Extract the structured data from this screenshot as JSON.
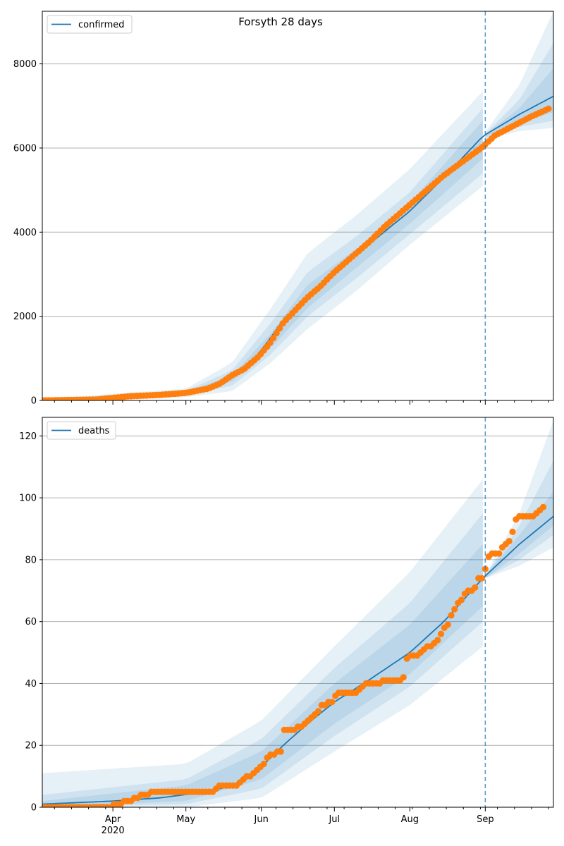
{
  "figure": {
    "title": "Forsyth 28 days"
  },
  "chart_data": [
    {
      "type": "line",
      "title": "Forsyth 28 days",
      "legend": {
        "label": "confirmed",
        "placement": "top-left"
      },
      "xaxis": {
        "start": "2020-03-03",
        "end": "2020-09-29",
        "ticks": [
          {
            "date": "2020-04-01",
            "label": "Apr"
          },
          {
            "date": "2020-05-01",
            "label": "May"
          },
          {
            "date": "2020-06-01",
            "label": "Jun"
          },
          {
            "date": "2020-07-01",
            "label": "Jul"
          },
          {
            "date": "2020-08-01",
            "label": "Aug"
          },
          {
            "date": "2020-09-01",
            "label": "Sep"
          }
        ],
        "tick_labels_shown": false
      },
      "ylim": [
        0,
        9250
      ],
      "yticks": [
        0,
        2000,
        4000,
        6000,
        8000
      ],
      "grid": "horizontal",
      "forecast_start": "2020-09-01",
      "series": [
        {
          "name": "confirmed",
          "kind": "model",
          "color": "#1f77b4",
          "points": [
            [
              "2020-03-03",
              0
            ],
            [
              "2020-04-01",
              70
            ],
            [
              "2020-04-15",
              120
            ],
            [
              "2020-05-01",
              180
            ],
            [
              "2020-05-10",
              300
            ],
            [
              "2020-05-20",
              550
            ],
            [
              "2020-05-28",
              900
            ],
            [
              "2020-06-03",
              1350
            ],
            [
              "2020-06-10",
              1900
            ],
            [
              "2020-06-20",
              2500
            ],
            [
              "2020-07-01",
              3000
            ],
            [
              "2020-07-15",
              3700
            ],
            [
              "2020-08-01",
              4500
            ],
            [
              "2020-08-15",
              5300
            ],
            [
              "2020-08-31",
              6280
            ],
            [
              "2020-09-15",
              6800
            ],
            [
              "2020-09-29",
              7230
            ]
          ]
        },
        {
          "name": "observed",
          "kind": "points",
          "color": "#ff7f0e",
          "points": [
            [
              "2020-03-03",
              0
            ],
            [
              "2020-03-25",
              20
            ],
            [
              "2020-04-01",
              60
            ],
            [
              "2020-04-08",
              100
            ],
            [
              "2020-04-20",
              130
            ],
            [
              "2020-05-01",
              180
            ],
            [
              "2020-05-10",
              280
            ],
            [
              "2020-05-15",
              400
            ],
            [
              "2020-05-20",
              600
            ],
            [
              "2020-05-25",
              750
            ],
            [
              "2020-05-31",
              1050
            ],
            [
              "2020-06-05",
              1400
            ],
            [
              "2020-06-10",
              1850
            ],
            [
              "2020-06-15",
              2150
            ],
            [
              "2020-06-20",
              2450
            ],
            [
              "2020-06-25",
              2700
            ],
            [
              "2020-07-01",
              3050
            ],
            [
              "2020-07-08",
              3400
            ],
            [
              "2020-07-15",
              3750
            ],
            [
              "2020-07-22",
              4150
            ],
            [
              "2020-08-01",
              4650
            ],
            [
              "2020-08-08",
              5000
            ],
            [
              "2020-08-15",
              5350
            ],
            [
              "2020-08-22",
              5650
            ],
            [
              "2020-08-31",
              6030
            ],
            [
              "2020-09-05",
              6300
            ],
            [
              "2020-09-10",
              6450
            ],
            [
              "2020-09-15",
              6600
            ],
            [
              "2020-09-20",
              6750
            ],
            [
              "2020-09-25",
              6880
            ],
            [
              "2020-09-28",
              6960
            ]
          ]
        }
      ],
      "bands": [
        {
          "dates": [
            "2020-03-03",
            "2020-05-01",
            "2020-05-20",
            "2020-06-05",
            "2020-06-20",
            "2020-07-10",
            "2020-08-01",
            "2020-08-31",
            "2020-09-01",
            "2020-09-15",
            "2020-09-29"
          ],
          "lower": [
            0,
            80,
            220,
            900,
            1700,
            2600,
            3700,
            5100,
            6200,
            6400,
            6480
          ],
          "upper": [
            40,
            280,
            900,
            2200,
            3500,
            4400,
            5500,
            7350,
            6380,
            7500,
            9250
          ]
        },
        {
          "dates": [
            "2020-03-03",
            "2020-05-01",
            "2020-05-20",
            "2020-06-05",
            "2020-06-20",
            "2020-07-10",
            "2020-08-01",
            "2020-08-31",
            "2020-09-01",
            "2020-09-15",
            "2020-09-29"
          ],
          "lower": [
            0,
            110,
            350,
            1100,
            2000,
            2900,
            3950,
            5400,
            6230,
            6500,
            6650
          ],
          "upper": [
            25,
            230,
            720,
            1850,
            3050,
            3900,
            4950,
            6950,
            6340,
            7150,
            8500
          ]
        },
        {
          "dates": [
            "2020-03-03",
            "2020-05-01",
            "2020-05-20",
            "2020-06-05",
            "2020-06-20",
            "2020-07-10",
            "2020-08-01",
            "2020-08-31",
            "2020-09-01",
            "2020-09-15",
            "2020-09-29"
          ],
          "lower": [
            0,
            140,
            450,
            1250,
            2200,
            3150,
            4200,
            5750,
            6260,
            6600,
            6850
          ],
          "upper": [
            12,
            200,
            600,
            1600,
            2750,
            3600,
            4700,
            6650,
            6320,
            6950,
            7900
          ]
        }
      ]
    },
    {
      "type": "line",
      "title": "",
      "legend": {
        "label": "deaths",
        "placement": "top-left"
      },
      "xaxis": {
        "start": "2020-03-03",
        "end": "2020-09-29",
        "ticks": [
          {
            "date": "2020-04-01",
            "label": "Apr"
          },
          {
            "date": "2020-05-01",
            "label": "May"
          },
          {
            "date": "2020-06-01",
            "label": "Jun"
          },
          {
            "date": "2020-07-01",
            "label": "Jul"
          },
          {
            "date": "2020-08-01",
            "label": "Aug"
          },
          {
            "date": "2020-09-01",
            "label": "Sep"
          }
        ],
        "tick_labels_shown": true,
        "year_label": "2020"
      },
      "ylim": [
        0,
        126
      ],
      "yticks": [
        0,
        20,
        40,
        60,
        80,
        100,
        120
      ],
      "grid": "horizontal",
      "forecast_start": "2020-09-01",
      "series": [
        {
          "name": "deaths",
          "kind": "model",
          "color": "#1f77b4",
          "points": [
            [
              "2020-03-03",
              1
            ],
            [
              "2020-04-01",
              2
            ],
            [
              "2020-04-20",
              3
            ],
            [
              "2020-05-10",
              5
            ],
            [
              "2020-05-20",
              7
            ],
            [
              "2020-06-01",
              13
            ],
            [
              "2020-06-10",
              20
            ],
            [
              "2020-06-20",
              27
            ],
            [
              "2020-07-01",
              34
            ],
            [
              "2020-07-15",
              41
            ],
            [
              "2020-08-01",
              50
            ],
            [
              "2020-08-15",
              60
            ],
            [
              "2020-08-31",
              74
            ],
            [
              "2020-09-15",
              85
            ],
            [
              "2020-09-29",
              94
            ]
          ]
        },
        {
          "name": "observed",
          "kind": "points",
          "color": "#ff7f0e",
          "points": [
            [
              "2020-03-03",
              0
            ],
            [
              "2020-03-31",
              0
            ],
            [
              "2020-04-02",
              1
            ],
            [
              "2020-04-08",
              2
            ],
            [
              "2020-04-14",
              4
            ],
            [
              "2020-04-18",
              5
            ],
            [
              "2020-05-12",
              5
            ],
            [
              "2020-05-15",
              7
            ],
            [
              "2020-05-22",
              7
            ],
            [
              "2020-05-25",
              9
            ],
            [
              "2020-05-29",
              11
            ],
            [
              "2020-06-02",
              14
            ],
            [
              "2020-06-04",
              17
            ],
            [
              "2020-06-09",
              18
            ],
            [
              "2020-06-10",
              25
            ],
            [
              "2020-06-15",
              25
            ],
            [
              "2020-06-20",
              28
            ],
            [
              "2020-06-24",
              31
            ],
            [
              "2020-06-26",
              33
            ],
            [
              "2020-06-30",
              34
            ],
            [
              "2020-07-02",
              37
            ],
            [
              "2020-07-10",
              37
            ],
            [
              "2020-07-14",
              40
            ],
            [
              "2020-07-20",
              40
            ],
            [
              "2020-07-22",
              41
            ],
            [
              "2020-07-29",
              41
            ],
            [
              "2020-07-30",
              44
            ],
            [
              "2020-07-31",
              49
            ],
            [
              "2020-08-04",
              49
            ],
            [
              "2020-08-06",
              51
            ],
            [
              "2020-08-08",
              52
            ],
            [
              "2020-08-12",
              53
            ],
            [
              "2020-08-14",
              56
            ],
            [
              "2020-08-17",
              60
            ],
            [
              "2020-08-19",
              63
            ],
            [
              "2020-08-21",
              66
            ],
            [
              "2020-08-24",
              69
            ],
            [
              "2020-08-26",
              70
            ],
            [
              "2020-08-28",
              71
            ],
            [
              "2020-08-29",
              74
            ],
            [
              "2020-08-31",
              74
            ],
            [
              "2020-09-02",
              80
            ],
            [
              "2020-09-03",
              82
            ],
            [
              "2020-09-07",
              82
            ],
            [
              "2020-09-08",
              84
            ],
            [
              "2020-09-11",
              86
            ],
            [
              "2020-09-13",
              91
            ],
            [
              "2020-09-14",
              94
            ],
            [
              "2020-09-20",
              94
            ],
            [
              "2020-09-22",
              95
            ],
            [
              "2020-09-24",
              97
            ],
            [
              "2020-09-26",
              98
            ]
          ]
        }
      ],
      "bands": [
        {
          "dates": [
            "2020-03-03",
            "2020-05-01",
            "2020-06-01",
            "2020-07-01",
            "2020-08-01",
            "2020-08-31",
            "2020-09-01",
            "2020-09-15",
            "2020-09-29"
          ],
          "lower": [
            0,
            0,
            3,
            18,
            33,
            52,
            74,
            78,
            84
          ],
          "upper": [
            11,
            14,
            28,
            52,
            76,
            106,
            75,
            95,
            125
          ]
        },
        {
          "dates": [
            "2020-03-03",
            "2020-05-01",
            "2020-06-01",
            "2020-07-01",
            "2020-08-01",
            "2020-08-31",
            "2020-09-01",
            "2020-09-15",
            "2020-09-29"
          ],
          "lower": [
            0,
            1,
            6,
            23,
            39,
            60,
            74,
            80,
            88
          ],
          "upper": [
            4,
            9,
            22,
            45,
            66,
            95,
            75,
            91,
            112
          ]
        },
        {
          "dates": [
            "2020-03-03",
            "2020-05-01",
            "2020-06-01",
            "2020-07-01",
            "2020-08-01",
            "2020-08-31",
            "2020-09-01",
            "2020-09-15",
            "2020-09-29"
          ],
          "lower": [
            0,
            2,
            9,
            27,
            43,
            65,
            74,
            82,
            91
          ],
          "upper": [
            2,
            7,
            18,
            40,
            59,
            85,
            75,
            88,
            102
          ]
        }
      ]
    }
  ],
  "colors": {
    "model_line": "#1f77b4",
    "observed_points": "#ff7f0e",
    "band": "#1f77b4",
    "grid": "#b0b0b0",
    "forecast_marker": "#1f77b4"
  }
}
